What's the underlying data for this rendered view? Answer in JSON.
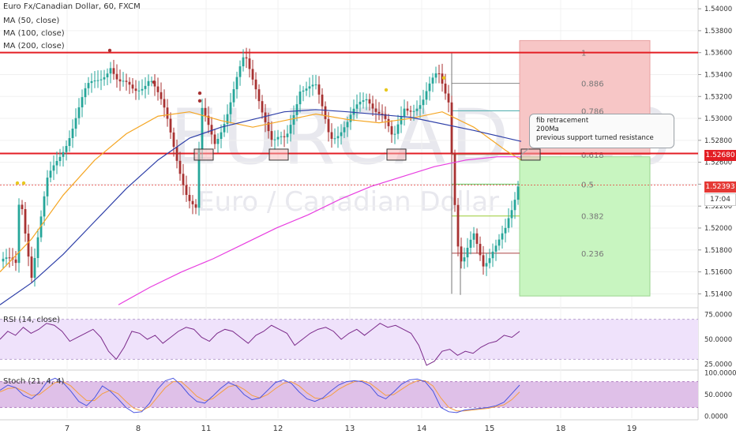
{
  "title": "Euro Fx/Canadian Dollar, 60, FXCM",
  "watermark": {
    "big": "EURCAD, 60",
    "small": "Euro / Canadian Dollar"
  },
  "indicators": [
    "MA (50, close)",
    "MA (100, close)",
    "MA (200, close)"
  ],
  "note_lines": [
    "fib retracement",
    "200Ma",
    "previous support turned resistance"
  ],
  "price_tags": {
    "resistance": {
      "text": "1.52680",
      "color": "#e31e24"
    },
    "last": {
      "text": "1.52393",
      "color": "#e53935"
    },
    "countdown": {
      "text": "17:04"
    }
  },
  "rsi_label": "RSI (14, close)",
  "stoch_label": "Stoch (21, 4, 4)",
  "colors": {
    "up": "#26a69a",
    "down": "#a83232",
    "ma50": "#f5a623",
    "ma100": "#2e3fa8",
    "ma200": "#e83ee0",
    "resistance": "#e31e24",
    "rsi": "#7b2a8a",
    "stoch_k": "#4a55e0",
    "stoch_d": "#f59e42",
    "fib": "#888888"
  },
  "chart_data": [
    {
      "type": "candlestick",
      "title": "Euro Fx/Canadian Dollar, 60, FXCM",
      "x_ticks": [
        "7",
        "8",
        "11",
        "12",
        "13",
        "14",
        "15",
        "18",
        "19"
      ],
      "y_ticks": [
        "1.54000",
        "1.53800",
        "1.53600",
        "1.53400",
        "1.53200",
        "1.53000",
        "1.52800",
        "1.52600",
        "1.52400",
        "1.52200",
        "1.52000",
        "1.51800",
        "1.51600",
        "1.51400"
      ],
      "ylim": [
        1.5128,
        1.5408
      ],
      "grid": true,
      "horizontal_lines": [
        {
          "label": "resistance-top",
          "value": 1.536
        },
        {
          "label": "resistance",
          "value": 1.5268
        }
      ],
      "fib_levels": [
        {
          "label": "1",
          "value": 1.536
        },
        {
          "label": "0.886",
          "value": 1.5332
        },
        {
          "label": "0.786",
          "value": 1.5307
        },
        {
          "label": "0.618",
          "value": 1.5267
        },
        {
          "label": "0.5",
          "value": 1.524
        },
        {
          "label": "0.382",
          "value": 1.5211
        },
        {
          "label": "0.236",
          "value": 1.5177
        }
      ],
      "last_price": 1.52393,
      "series": [
        {
          "name": "MA (50, close)",
          "values": [
            1.516,
            1.519,
            1.523,
            1.5262,
            1.5286,
            1.5302,
            1.5306,
            1.5298,
            1.5292,
            1.5298,
            1.5304,
            1.5299,
            1.5296,
            1.53,
            1.5306,
            1.5292,
            1.5271,
            1.5262
          ]
        },
        {
          "name": "MA (100, close)",
          "values": [
            1.513,
            1.515,
            1.5176,
            1.5206,
            1.5236,
            1.5262,
            1.5282,
            1.5292,
            1.5299,
            1.5306,
            1.5308,
            1.5306,
            1.5301,
            1.5289,
            1.5279
          ]
        },
        {
          "name": "MA (200, close)",
          "values": [
            1.513,
            1.5146,
            1.516,
            1.5172,
            1.5186,
            1.52,
            1.5212,
            1.5226,
            1.5238,
            1.5247,
            1.5256,
            1.5262,
            1.5265,
            1.5265
          ]
        }
      ]
    },
    {
      "type": "line",
      "title": "RSI (14, close)",
      "y_ticks": [
        "75.0000",
        "50.0000",
        "25.0000"
      ],
      "ylim": [
        20,
        80
      ],
      "band": [
        30,
        70
      ],
      "series": [
        {
          "name": "RSI (14, close)",
          "values": [
            50,
            58,
            54,
            62,
            56,
            60,
            66,
            64,
            58,
            48,
            52,
            56,
            60,
            52,
            38,
            30,
            42,
            58,
            56,
            50,
            54,
            46,
            52,
            58,
            62,
            60,
            52,
            48,
            56,
            60,
            58,
            52,
            46,
            54,
            58,
            64,
            60,
            56,
            44,
            50,
            56,
            60,
            62,
            58,
            50,
            56,
            60,
            54,
            60,
            66,
            62,
            64,
            60,
            56,
            44,
            24,
            28,
            38,
            40,
            34,
            38,
            36,
            42,
            46,
            48,
            54,
            52,
            58
          ]
        }
      ]
    },
    {
      "type": "line",
      "title": "Stoch (21, 4, 4)",
      "y_ticks": [
        "100.0000",
        "50.0000",
        "0.0000"
      ],
      "ylim": [
        -5,
        105
      ],
      "band": [
        20,
        80
      ],
      "series": [
        {
          "name": "k",
          "values": [
            60,
            72,
            66,
            48,
            40,
            55,
            80,
            88,
            78,
            58,
            34,
            24,
            42,
            70,
            58,
            40,
            20,
            8,
            10,
            30,
            62,
            82,
            88,
            72,
            50,
            34,
            30,
            46,
            64,
            78,
            70,
            50,
            38,
            42,
            60,
            78,
            84,
            76,
            56,
            40,
            34,
            42,
            58,
            72,
            80,
            82,
            80,
            70,
            48,
            40,
            56,
            74,
            84,
            86,
            80,
            58,
            20,
            10,
            8,
            14,
            16,
            18,
            20,
            24,
            32,
            52,
            72
          ]
        },
        {
          "name": "d",
          "values": [
            56,
            64,
            66,
            58,
            48,
            50,
            64,
            78,
            80,
            70,
            52,
            36,
            36,
            52,
            60,
            52,
            34,
            18,
            12,
            22,
            44,
            66,
            80,
            80,
            64,
            46,
            36,
            40,
            54,
            68,
            72,
            62,
            48,
            42,
            50,
            64,
            76,
            80,
            70,
            54,
            42,
            40,
            48,
            62,
            72,
            80,
            82,
            76,
            62,
            48,
            50,
            62,
            74,
            82,
            82,
            70,
            42,
            20,
            12,
            12,
            14,
            16,
            18,
            22,
            26,
            38,
            56
          ]
        }
      ]
    }
  ]
}
